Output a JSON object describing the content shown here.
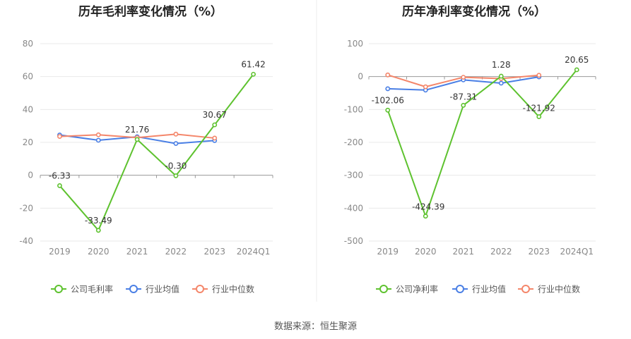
{
  "source": "数据来源：恒生聚源",
  "colors": {
    "company": "#5ec22f",
    "industry_avg": "#4a7fe5",
    "industry_median": "#f4866a"
  },
  "chart_data": [
    {
      "type": "line",
      "title": "历年毛利率变化情况（%）",
      "categories": [
        "2019",
        "2020",
        "2021",
        "2022",
        "2023",
        "2024Q1"
      ],
      "ylim": [
        -40,
        80
      ],
      "yticks": [
        80,
        60,
        40,
        20,
        0,
        -20,
        -40
      ],
      "grid": true,
      "legend": "bottom",
      "series": [
        {
          "name": "公司毛利率",
          "key": "company",
          "values": [
            -6.33,
            -33.49,
            21.76,
            -0.3,
            30.67,
            61.42
          ],
          "labels": [
            "-6.33",
            "-33.49",
            "21.76",
            "-0.30",
            "30.67",
            "61.42"
          ]
        },
        {
          "name": "行业均值",
          "key": "industry_avg",
          "values": [
            24.5,
            21.3,
            23.4,
            19.3,
            21.1,
            null
          ]
        },
        {
          "name": "行业中位数",
          "key": "industry_median",
          "values": [
            23.6,
            24.6,
            22.9,
            25.0,
            22.6,
            null
          ]
        }
      ]
    },
    {
      "type": "line",
      "title": "历年净利率变化情况（%）",
      "categories": [
        "2019",
        "2020",
        "2021",
        "2022",
        "2023",
        "2024Q1"
      ],
      "ylim": [
        -500,
        100
      ],
      "yticks": [
        100,
        0,
        -100,
        -200,
        -300,
        -400,
        -500
      ],
      "grid": true,
      "legend": "bottom",
      "series": [
        {
          "name": "公司净利率",
          "key": "company",
          "values": [
            -102.06,
            -424.39,
            -87.31,
            1.28,
            -121.92,
            20.65
          ],
          "labels": [
            "-102.06",
            "-424.39",
            "-87.31",
            "1.28",
            "-121.92",
            "20.65"
          ]
        },
        {
          "name": "行业均值",
          "key": "industry_avg",
          "values": [
            -37,
            -41,
            -10,
            -20,
            -1,
            null
          ]
        },
        {
          "name": "行业中位数",
          "key": "industry_median",
          "values": [
            5,
            -31,
            -2,
            -6,
            4,
            null
          ]
        }
      ]
    }
  ]
}
